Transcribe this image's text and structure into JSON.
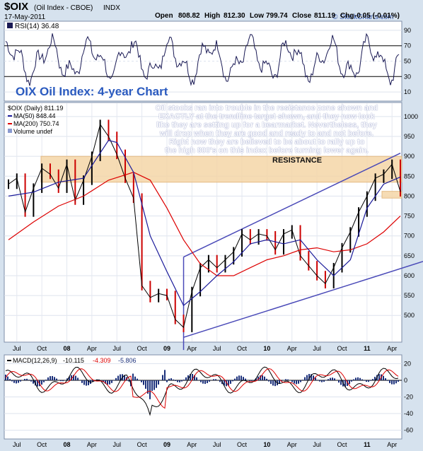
{
  "header": {
    "symbol": "$OIX",
    "name": "(Oil Index - CBOE)",
    "exchange": "INDX",
    "date": "17-May-2011",
    "open_label": "Open",
    "open": "808.82",
    "high_label": "High",
    "high": "812.30",
    "low_label": "Low",
    "low": "799.74",
    "close_label": "Close",
    "close": "811.19",
    "chg_label": "Chg",
    "chg": "-0.05 (-0.01%)",
    "watermark": "© StockCharts.com"
  },
  "rsi_panel": {
    "label": "RSI(14) 36.48",
    "ticks": [
      "90",
      "70",
      "50",
      "30",
      "10"
    ]
  },
  "price_panel": {
    "title": "OIX Oil Index: 4-year Chart",
    "legend": {
      "main": "$OIX (Daily) 811.19",
      "ma50": "MA(50) 848.44",
      "ma200": "MA(200) 750.74",
      "volume": "Volume undef"
    },
    "ticks": [
      "1000",
      "950",
      "900",
      "850",
      "800",
      "750",
      "700",
      "650",
      "600",
      "550",
      "500"
    ],
    "resistance_label": "RESISTANCE",
    "annotation": [
      "Oil stocks ran into trouble in the resistance zone shown and",
      "EXACTLY at the trendline target shown, and they now look",
      "like they are setting up for a bearmarket. Nevertheless, they",
      "will drop when they are good and ready to and not before.",
      "Right now they are believed to be about to rally up to",
      "the high 800's on this index before turning lower again."
    ]
  },
  "macd_panel": {
    "label_main": "MACD(12,26,9)",
    "v1": "-10.115",
    "v2": "-4.309",
    "v3": "-5.806",
    "ticks": [
      "20",
      "0",
      "-20",
      "-40",
      "-60"
    ]
  },
  "x_axis_labels": [
    "Jul",
    "Oct",
    "08",
    "Apr",
    "Jul",
    "Oct",
    "09",
    "Apr",
    "Jul",
    "Oct",
    "10",
    "Apr",
    "Jul",
    "Oct",
    "11",
    "Apr"
  ],
  "colors": {
    "price": "#000000",
    "ma50": "#1a1a9a",
    "ma200": "#dd0000",
    "channel": "#4a4ab8",
    "resistance_zone": "#f5d6a8",
    "panel_bg": "#ffffff",
    "frame_bg": "#d6e2ee",
    "title": "#2a5abf",
    "macd_hist": "#1a2f7a"
  },
  "chart_data": {
    "type": "line",
    "title": "OIX Oil Index: 4-year Chart",
    "ylim": [
      440,
      1030
    ],
    "y_ticks": [
      500,
      550,
      600,
      650,
      700,
      750,
      800,
      850,
      900,
      950,
      1000
    ],
    "resistance_zone": [
      835,
      900
    ],
    "support_box": [
      795,
      812
    ],
    "channel": {
      "upper": [
        [
          "2009-03",
          647
        ],
        [
          "2011-05",
          908
        ]
      ],
      "lower": [
        [
          "2009-03",
          445
        ],
        [
          "2011-05",
          625
        ]
      ]
    },
    "series": [
      {
        "name": "$OIX (Daily)",
        "x": [
          "2007-06",
          "2007-07",
          "2007-08",
          "2007-09",
          "2007-10",
          "2007-11",
          "2007-12",
          "2008-01",
          "2008-02",
          "2008-03",
          "2008-04",
          "2008-05",
          "2008-06",
          "2008-07",
          "2008-08",
          "2008-09",
          "2008-10",
          "2008-11",
          "2008-12",
          "2009-01",
          "2009-02",
          "2009-03",
          "2009-04",
          "2009-05",
          "2009-06",
          "2009-07",
          "2009-08",
          "2009-09",
          "2009-10",
          "2009-11",
          "2009-12",
          "2010-01",
          "2010-02",
          "2010-03",
          "2010-04",
          "2010-05",
          "2010-06",
          "2010-07",
          "2010-08",
          "2010-09",
          "2010-10",
          "2010-11",
          "2010-12",
          "2011-01",
          "2011-02",
          "2011-03",
          "2011-04",
          "2011-05"
        ],
        "values": [
          830,
          845,
          760,
          820,
          870,
          855,
          820,
          880,
          790,
          840,
          900,
          980,
          950,
          905,
          845,
          795,
          575,
          545,
          555,
          550,
          490,
          470,
          560,
          620,
          640,
          620,
          640,
          660,
          705,
          690,
          705,
          700,
          665,
          705,
          715,
          650,
          625,
          600,
          580,
          620,
          670,
          710,
          760,
          800,
          845,
          855,
          880,
          811
        ]
      },
      {
        "name": "MA(50)",
        "x": [
          "2007-06",
          "2007-09",
          "2007-12",
          "2008-03",
          "2008-06",
          "2008-07",
          "2008-09",
          "2008-11",
          "2009-01",
          "2009-03",
          "2009-05",
          "2009-07",
          "2009-09",
          "2009-11",
          "2010-01",
          "2010-03",
          "2010-05",
          "2010-07",
          "2010-09",
          "2010-11",
          "2011-01",
          "2011-03",
          "2011-05"
        ],
        "values": [
          800,
          810,
          835,
          845,
          940,
          935,
          860,
          700,
          610,
          525,
          560,
          600,
          635,
          680,
          690,
          680,
          690,
          640,
          600,
          640,
          770,
          830,
          848
        ]
      },
      {
        "name": "MA(200)",
        "x": [
          "2007-06",
          "2007-09",
          "2007-12",
          "2008-03",
          "2008-06",
          "2008-09",
          "2008-11",
          "2009-01",
          "2009-03",
          "2009-05",
          "2009-07",
          "2009-09",
          "2009-11",
          "2010-01",
          "2010-03",
          "2010-05",
          "2010-07",
          "2010-09",
          "2010-11",
          "2011-01",
          "2011-03",
          "2011-05"
        ],
        "values": [
          690,
          735,
          775,
          800,
          840,
          860,
          840,
          770,
          690,
          630,
          600,
          600,
          620,
          640,
          650,
          665,
          670,
          660,
          665,
          680,
          710,
          750
        ]
      }
    ]
  }
}
